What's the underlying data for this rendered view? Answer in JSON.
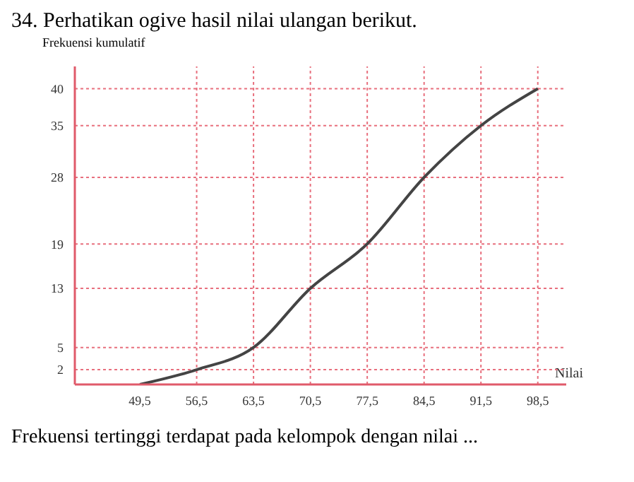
{
  "chart_data": {
    "type": "line",
    "title": "34. Perhatikan ogive hasil nilai ulangan berikut.",
    "ylabel": "Frekuensi kumulatif",
    "xlabel": "Nilai",
    "annotations": [
      "Frekuensi tertinggi terdapat pada kelompok dengan nilai ..."
    ],
    "x": [
      49.5,
      56.5,
      63.5,
      70.5,
      77.5,
      84.5,
      91.5,
      98.5
    ],
    "series": [
      {
        "color": "#444444",
        "values": [
          0,
          2,
          5,
          13,
          19,
          28,
          35,
          40
        ]
      }
    ],
    "xlim": [
      41.5,
      102
    ],
    "ylim": [
      0,
      43
    ],
    "xticks": [
      {
        "value": 49.5,
        "label": "49,5"
      },
      {
        "value": 56.5,
        "label": "56,5"
      },
      {
        "value": 63.5,
        "label": "63,5"
      },
      {
        "value": 70.5,
        "label": "70,5"
      },
      {
        "value": 77.5,
        "label": "77,5"
      },
      {
        "value": 84.5,
        "label": "84,5"
      },
      {
        "value": 91.5,
        "label": "91,5"
      },
      {
        "value": 98.5,
        "label": "98,5"
      }
    ],
    "yticks": [
      2,
      5,
      13,
      19,
      28,
      35,
      40
    ],
    "marker": "none",
    "line_style": "solid",
    "ref_lines": [
      {
        "axis": "y",
        "value": 2,
        "color": "#e8707e",
        "line_style": "dotted"
      },
      {
        "axis": "y",
        "value": 5,
        "color": "#e8707e",
        "line_style": "dotted"
      },
      {
        "axis": "y",
        "value": 13,
        "color": "#e8707e",
        "line_style": "dotted"
      },
      {
        "axis": "y",
        "value": 19,
        "color": "#e8707e",
        "line_style": "dotted"
      },
      {
        "axis": "y",
        "value": 28,
        "color": "#e8707e",
        "line_style": "dotted"
      },
      {
        "axis": "y",
        "value": 35,
        "color": "#e8707e",
        "line_style": "dotted"
      },
      {
        "axis": "y",
        "value": 40,
        "color": "#e8707e",
        "line_style": "dotted"
      },
      {
        "axis": "x",
        "value": 56.5,
        "color": "#e8707e",
        "line_style": "dotted"
      },
      {
        "axis": "x",
        "value": 63.5,
        "color": "#e8707e",
        "line_style": "dotted"
      },
      {
        "axis": "x",
        "value": 70.5,
        "color": "#e8707e",
        "line_style": "dotted"
      },
      {
        "axis": "x",
        "value": 77.5,
        "color": "#e8707e",
        "line_style": "dotted"
      },
      {
        "axis": "x",
        "value": 84.5,
        "color": "#e8707e",
        "line_style": "dotted"
      },
      {
        "axis": "x",
        "value": 91.5,
        "color": "#e8707e",
        "line_style": "dotted"
      },
      {
        "axis": "x",
        "value": 98.5,
        "color": "#e8707e",
        "line_style": "dotted"
      }
    ]
  }
}
